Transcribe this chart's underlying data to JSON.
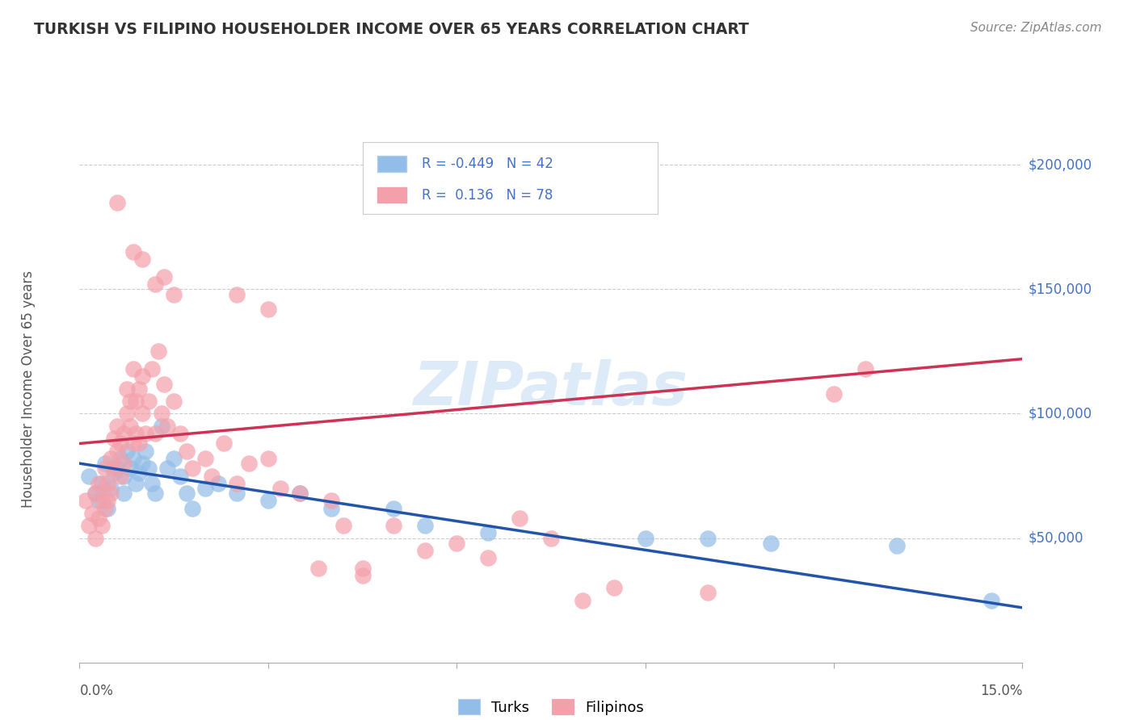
{
  "title": "TURKISH VS FILIPINO HOUSEHOLDER INCOME OVER 65 YEARS CORRELATION CHART",
  "source": "Source: ZipAtlas.com",
  "ylabel": "Householder Income Over 65 years",
  "xlim": [
    0.0,
    15.0
  ],
  "ylim": [
    0,
    220000
  ],
  "background_color": "#ffffff",
  "grid_color": "#cccccc",
  "watermark": "ZIPatlas",
  "turks_color": "#92bde8",
  "filipinos_color": "#f4a0aa",
  "turks_line_color": "#2255aa",
  "filipinos_line_color": "#cc3355",
  "turks_points": [
    [
      0.15,
      75000
    ],
    [
      0.25,
      68000
    ],
    [
      0.3,
      65000
    ],
    [
      0.35,
      72000
    ],
    [
      0.4,
      80000
    ],
    [
      0.45,
      62000
    ],
    [
      0.5,
      70000
    ],
    [
      0.55,
      76000
    ],
    [
      0.6,
      78000
    ],
    [
      0.65,
      82000
    ],
    [
      0.7,
      75000
    ],
    [
      0.7,
      68000
    ],
    [
      0.75,
      85000
    ],
    [
      0.8,
      78000
    ],
    [
      0.85,
      82000
    ],
    [
      0.9,
      72000
    ],
    [
      0.95,
      76000
    ],
    [
      1.0,
      80000
    ],
    [
      1.05,
      85000
    ],
    [
      1.1,
      78000
    ],
    [
      1.15,
      72000
    ],
    [
      1.2,
      68000
    ],
    [
      1.3,
      95000
    ],
    [
      1.4,
      78000
    ],
    [
      1.5,
      82000
    ],
    [
      1.6,
      75000
    ],
    [
      1.7,
      68000
    ],
    [
      1.8,
      62000
    ],
    [
      2.0,
      70000
    ],
    [
      2.2,
      72000
    ],
    [
      2.5,
      68000
    ],
    [
      3.0,
      65000
    ],
    [
      3.5,
      68000
    ],
    [
      4.0,
      62000
    ],
    [
      5.0,
      62000
    ],
    [
      5.5,
      55000
    ],
    [
      6.5,
      52000
    ],
    [
      9.0,
      50000
    ],
    [
      10.0,
      50000
    ],
    [
      11.0,
      48000
    ],
    [
      13.0,
      47000
    ],
    [
      14.5,
      25000
    ]
  ],
  "filipinos_points": [
    [
      0.1,
      65000
    ],
    [
      0.15,
      55000
    ],
    [
      0.2,
      60000
    ],
    [
      0.25,
      50000
    ],
    [
      0.25,
      68000
    ],
    [
      0.3,
      72000
    ],
    [
      0.3,
      58000
    ],
    [
      0.35,
      65000
    ],
    [
      0.35,
      55000
    ],
    [
      0.4,
      78000
    ],
    [
      0.4,
      62000
    ],
    [
      0.45,
      72000
    ],
    [
      0.45,
      65000
    ],
    [
      0.5,
      82000
    ],
    [
      0.5,
      68000
    ],
    [
      0.55,
      78000
    ],
    [
      0.55,
      90000
    ],
    [
      0.6,
      85000
    ],
    [
      0.6,
      95000
    ],
    [
      0.65,
      88000
    ],
    [
      0.65,
      75000
    ],
    [
      0.7,
      92000
    ],
    [
      0.7,
      80000
    ],
    [
      0.75,
      100000
    ],
    [
      0.75,
      110000
    ],
    [
      0.8,
      95000
    ],
    [
      0.8,
      105000
    ],
    [
      0.85,
      88000
    ],
    [
      0.85,
      118000
    ],
    [
      0.9,
      92000
    ],
    [
      0.9,
      105000
    ],
    [
      0.95,
      88000
    ],
    [
      0.95,
      110000
    ],
    [
      1.0,
      100000
    ],
    [
      1.0,
      115000
    ],
    [
      1.05,
      92000
    ],
    [
      1.1,
      105000
    ],
    [
      1.15,
      118000
    ],
    [
      1.2,
      92000
    ],
    [
      1.25,
      125000
    ],
    [
      1.3,
      100000
    ],
    [
      1.35,
      112000
    ],
    [
      1.4,
      95000
    ],
    [
      1.5,
      105000
    ],
    [
      1.6,
      92000
    ],
    [
      1.7,
      85000
    ],
    [
      1.8,
      78000
    ],
    [
      2.0,
      82000
    ],
    [
      2.1,
      75000
    ],
    [
      2.3,
      88000
    ],
    [
      2.5,
      72000
    ],
    [
      2.7,
      80000
    ],
    [
      3.0,
      82000
    ],
    [
      3.2,
      70000
    ],
    [
      3.5,
      68000
    ],
    [
      4.0,
      65000
    ],
    [
      4.2,
      55000
    ],
    [
      4.5,
      38000
    ],
    [
      5.0,
      55000
    ],
    [
      5.5,
      45000
    ],
    [
      6.0,
      48000
    ],
    [
      6.5,
      42000
    ],
    [
      7.0,
      58000
    ],
    [
      7.5,
      50000
    ],
    [
      8.0,
      25000
    ],
    [
      8.5,
      30000
    ],
    [
      10.0,
      28000
    ],
    [
      12.0,
      108000
    ],
    [
      0.6,
      185000
    ],
    [
      1.0,
      162000
    ],
    [
      1.2,
      152000
    ],
    [
      1.5,
      148000
    ],
    [
      2.5,
      148000
    ],
    [
      3.0,
      142000
    ],
    [
      0.85,
      165000
    ],
    [
      1.35,
      155000
    ],
    [
      12.5,
      118000
    ],
    [
      4.5,
      35000
    ],
    [
      3.8,
      38000
    ]
  ],
  "turks_line": {
    "x0": 0.0,
    "y0": 80000,
    "x1": 15.0,
    "y1": 22000
  },
  "filipinos_line": {
    "x0": 0.0,
    "y0": 88000,
    "x1": 15.0,
    "y1": 122000
  }
}
